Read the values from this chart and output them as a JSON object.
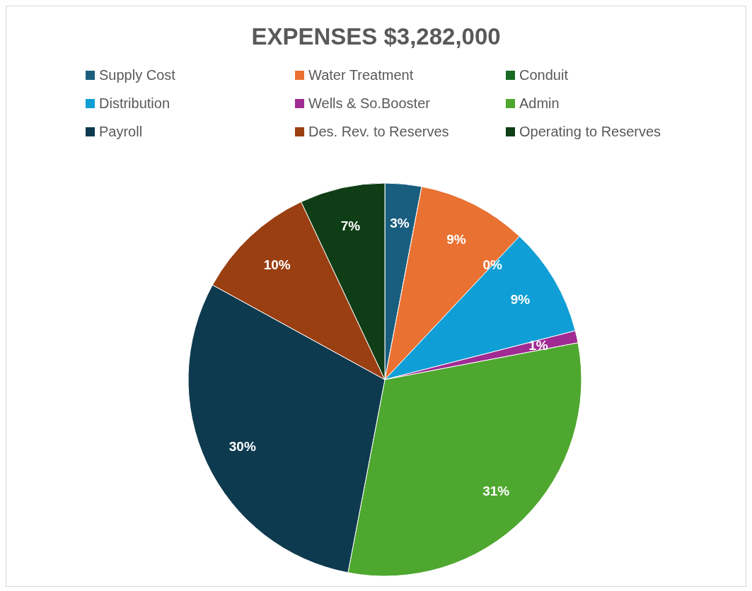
{
  "chart_data": {
    "type": "pie",
    "title": "EXPENSES $3,282,000",
    "categories": [
      "Supply Cost",
      "Water Treatment",
      "Conduit",
      "Distribution",
      "Wells & So.Booster",
      "Admin",
      "Payroll",
      "Des. Rev. to Reserves",
      "Operating to Reserves"
    ],
    "values": [
      3,
      9,
      0,
      9,
      1,
      31,
      30,
      10,
      7
    ],
    "value_labels": [
      "3%",
      "9%",
      "0%",
      "9%",
      "1%",
      "31%",
      "30%",
      "10%",
      "7%"
    ],
    "colors": [
      "#195e7e",
      "#e97132",
      "#196b24",
      "#0f9ed5",
      "#a02b93",
      "#4ea72e",
      "#0e3a4f",
      "#9a3f12",
      "#0f3d15"
    ],
    "legend": "top"
  }
}
